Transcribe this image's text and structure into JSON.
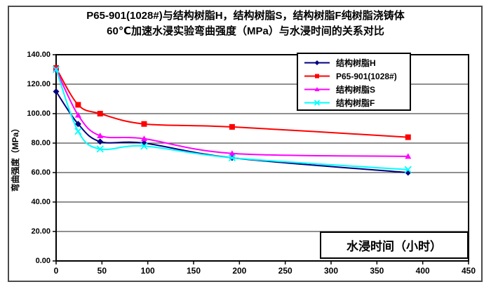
{
  "header": {
    "title_line1": "P65-901(1028#)与结构树脂H，结构树脂S，结构树脂F纯树脂浇铸体",
    "title_line2": "60℃加速水浸实验弯曲强度（MPa）与水浸时间的关系对比"
  },
  "chart_data": {
    "type": "line",
    "title": "P65-901(1028#)与结构树脂H，结构树脂S，结构树脂F纯树脂浇铸体 60℃加速水浸实验弯曲强度（MPa）与水浸时间的关系对比",
    "xlabel": "水浸时间（小时）",
    "ylabel": "弯曲强度（MPa）",
    "x": [
      0,
      24,
      48,
      96,
      192,
      384
    ],
    "series": [
      {
        "name": "结构树脂H",
        "color": "#000080",
        "marker": "diamond",
        "values": [
          115,
          93,
          81,
          80,
          70,
          60
        ]
      },
      {
        "name": "P65-901(1028#)",
        "color": "#ff0000",
        "marker": "square",
        "values": [
          131,
          106,
          100,
          93,
          91,
          84
        ]
      },
      {
        "name": "结构树脂S",
        "color": "#ff00ff",
        "marker": "triangle",
        "values": [
          130,
          99,
          85,
          83,
          73,
          71
        ]
      },
      {
        "name": "结构树脂F",
        "color": "#00ffff",
        "marker": "x",
        "values": [
          130,
          88,
          76,
          78,
          70,
          62
        ]
      }
    ],
    "xlim": [
      0,
      450
    ],
    "ylim": [
      0,
      140
    ],
    "x_tick_values": [
      0,
      50,
      100,
      150,
      200,
      250,
      300,
      350,
      400,
      450
    ],
    "x_tick_labels": [
      "0",
      "50",
      "100",
      "150",
      "200",
      "250",
      "300",
      "350",
      "400",
      "450"
    ],
    "y_tick_values": [
      140,
      120,
      100,
      80,
      60,
      40,
      20,
      0
    ],
    "y_tick_labels": [
      "140.00",
      "120.00",
      "100.00",
      "80.00",
      "60.00",
      "40.00",
      "20.00",
      "0.00"
    ],
    "grid": "horizontal",
    "legend_position": "top-right-inside-box",
    "line_style": "smoothed",
    "colors": {
      "grid": "#4d4d4d",
      "axis": "#000000",
      "figure_border": "#4b4b4b",
      "background": "#ffffff"
    }
  }
}
